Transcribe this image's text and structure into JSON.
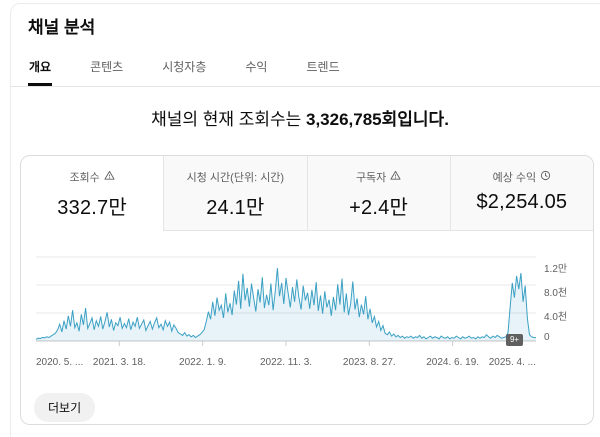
{
  "header": {
    "title": "채널 분석",
    "tabs": [
      {
        "label": "개요",
        "active": true
      },
      {
        "label": "콘텐츠",
        "active": false
      },
      {
        "label": "시청자층",
        "active": false
      },
      {
        "label": "수익",
        "active": false
      },
      {
        "label": "트렌드",
        "active": false
      }
    ]
  },
  "headline": {
    "prefix": "채널의 현재 조회수는 ",
    "bold": "3,326,785회입니다."
  },
  "metrics": [
    {
      "label": "조회수",
      "icon": "warning-icon",
      "value": "332.7만",
      "active": true
    },
    {
      "label": "시청 시간(단위: 시간)",
      "icon": "",
      "value": "24.1만",
      "active": false
    },
    {
      "label": "구독자",
      "icon": "warning-icon",
      "value": "+2.4만",
      "active": false
    },
    {
      "label": "예상 수익",
      "icon": "clock-icon",
      "value": "$2,254.05",
      "active": false
    }
  ],
  "chart": {
    "badge": "9+"
  },
  "footer": {
    "more_label": "더보기"
  },
  "chart_data": {
    "type": "area",
    "title": "채널 조회수 추이",
    "series_name": "조회수",
    "ylim": [
      0,
      12000
    ],
    "yticks": [
      0,
      4000,
      8000,
      12000
    ],
    "ytick_labels_desc": [
      "1.2만",
      "8.0천",
      "4.0천",
      "0"
    ],
    "xtick_labels": [
      "2020. 5. ...",
      "2021. 3. 18.",
      "2022. 1. 9.",
      "2022. 11. 3.",
      "2023. 8. 27.",
      "2024. 6. 19.",
      "2025. 4. ..."
    ],
    "grid": true,
    "legend": false,
    "colors": {
      "line": "#3ba0c4",
      "fill": "rgba(59,160,196,0.12)"
    },
    "values": [
      250,
      400,
      350,
      500,
      450,
      600,
      500,
      700,
      900,
      1100,
      1600,
      2400,
      1300,
      2900,
      1700,
      3600,
      2100,
      4400,
      1900,
      2600,
      1400,
      3800,
      2300,
      4700,
      1800,
      2500,
      3300,
      1600,
      2900,
      2100,
      3500,
      1700,
      2800,
      4100,
      2000,
      3100,
      1500,
      2600,
      2200,
      3400,
      1800,
      2500,
      1900,
      3200,
      1600,
      2700,
      2100,
      3400,
      1800,
      2400,
      3000,
      1500,
      2200,
      2800,
      1700,
      2600,
      3300,
      1900,
      2400,
      1600,
      2900,
      2100,
      2700,
      1400,
      2300,
      1800,
      1200,
      1000,
      800,
      1200,
      700,
      900,
      600,
      800,
      500,
      700,
      900,
      1200,
      1600,
      2800,
      4200,
      3100,
      5600,
      3600,
      6200,
      4400,
      5100,
      3300,
      6800,
      4100,
      5400,
      3700,
      7200,
      5200,
      8600,
      4600,
      9600,
      5800,
      7600,
      4900,
      8200,
      6100,
      4200,
      7400,
      5500,
      9100,
      4700,
      6600,
      5100,
      8200,
      4400,
      7000,
      10400,
      6400,
      8300,
      5300,
      9000,
      6800,
      4800,
      7700,
      5600,
      8800,
      6200,
      4500,
      7900,
      5800,
      6900,
      4600,
      7300,
      5100,
      8400,
      4300,
      6500,
      3900,
      7100,
      4800,
      5900,
      3600,
      6300,
      4400,
      8100,
      5200,
      8900,
      4100,
      6800,
      3700,
      5400,
      8500,
      4500,
      6100,
      3400,
      5200,
      3800,
      6400,
      3100,
      4600,
      2600,
      3500,
      2000,
      2800,
      1500,
      2200,
      1100,
      900,
      1300,
      700,
      1000,
      600,
      800,
      500,
      700,
      400,
      600,
      500,
      700,
      400,
      600,
      500,
      800,
      400,
      600,
      300,
      500,
      700,
      400,
      600,
      500,
      300,
      700,
      500,
      400,
      600,
      300,
      500,
      400,
      700,
      500,
      300,
      600,
      400,
      500,
      700,
      400,
      500,
      300,
      600,
      400,
      600,
      500,
      900,
      600,
      400,
      700,
      500,
      800,
      600,
      400,
      500,
      600,
      1200,
      4800,
      8300,
      6200,
      9300,
      7400,
      9700,
      5600,
      7900,
      3200,
      900,
      600,
      500,
      450
    ]
  }
}
